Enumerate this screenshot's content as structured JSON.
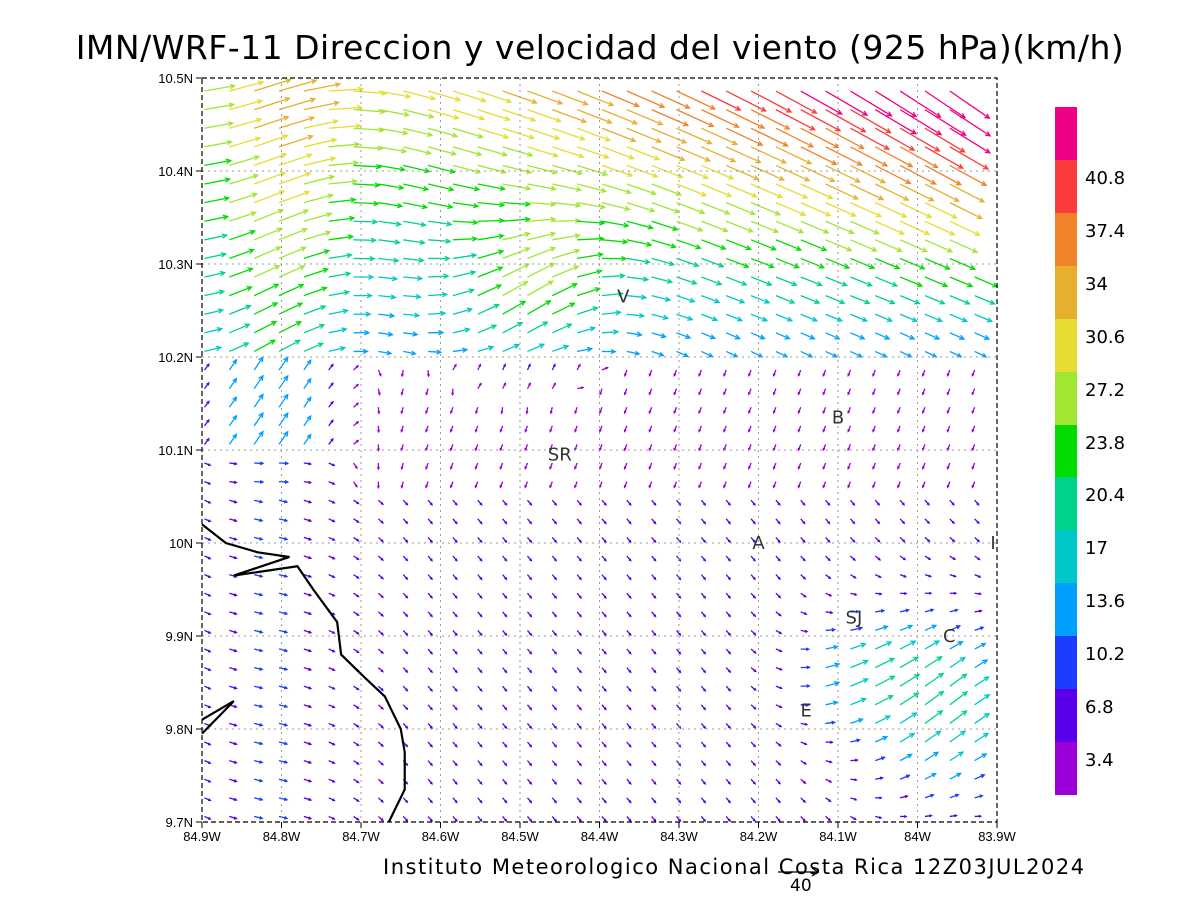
{
  "title": "IMN/WRF-11 Direccion y velocidad del viento (925 hPa)(km/h)",
  "footer": "Instituto Meteorologico Nacional Costa Rica 12Z03JUL2024",
  "reference_vector_label": "40",
  "axes": {
    "x_ticks": [
      "84.9W",
      "84.8W",
      "84.7W",
      "84.6W",
      "84.5W",
      "84.4W",
      "84.3W",
      "84.2W",
      "84.1W",
      "84W",
      "83.9W"
    ],
    "y_ticks": [
      "10.5N",
      "10.4N",
      "10.3N",
      "10.2N",
      "10.1N",
      "10N",
      "9.9N",
      "9.8N",
      "9.7N"
    ],
    "lon_range": [
      -84.9,
      -83.9
    ],
    "lat_range": [
      9.7,
      10.5
    ],
    "grid": true
  },
  "legend": {
    "labels": [
      "3.4",
      "6.8",
      "10.2",
      "13.6",
      "17",
      "20.4",
      "23.8",
      "27.2",
      "30.6",
      "34",
      "37.4",
      "40.8"
    ],
    "colors": [
      "#9b00d8",
      "#5a00e8",
      "#1e3cff",
      "#00a0ff",
      "#00c8c8",
      "#00d28c",
      "#00dc00",
      "#a0e632",
      "#e6dc32",
      "#e6af2d",
      "#f08228",
      "#fa3c3c",
      "#f00082"
    ]
  },
  "places": [
    {
      "label": "V",
      "lon": -84.37,
      "lat": 10.265
    },
    {
      "label": "SR",
      "lon": -84.45,
      "lat": 10.095
    },
    {
      "label": "B",
      "lon": -84.1,
      "lat": 10.135
    },
    {
      "label": "A",
      "lon": -84.2,
      "lat": 10.0
    },
    {
      "label": "I",
      "lon": -83.905,
      "lat": 10.0
    },
    {
      "label": "SJ",
      "lon": -84.08,
      "lat": 9.92
    },
    {
      "label": "C",
      "lon": -83.96,
      "lat": 9.9
    },
    {
      "label": "E",
      "lon": -84.14,
      "lat": 9.82
    }
  ],
  "coastline": [
    [
      -84.9,
      10.02
    ],
    [
      -84.87,
      10.0
    ],
    [
      -84.83,
      9.99
    ],
    [
      -84.79,
      9.985
    ],
    [
      -84.86,
      9.965
    ],
    [
      -84.78,
      9.975
    ],
    [
      -84.76,
      9.95
    ],
    [
      -84.73,
      9.915
    ],
    [
      -84.725,
      9.88
    ],
    [
      -84.695,
      9.855
    ],
    [
      -84.67,
      9.835
    ],
    [
      -84.65,
      9.8
    ],
    [
      -84.645,
      9.775
    ],
    [
      -84.645,
      9.735
    ],
    [
      -84.665,
      9.7
    ]
  ],
  "coastline_west": [
    [
      -84.9,
      9.81
    ],
    [
      -84.86,
      9.83
    ],
    [
      -84.9,
      9.795
    ]
  ]
}
